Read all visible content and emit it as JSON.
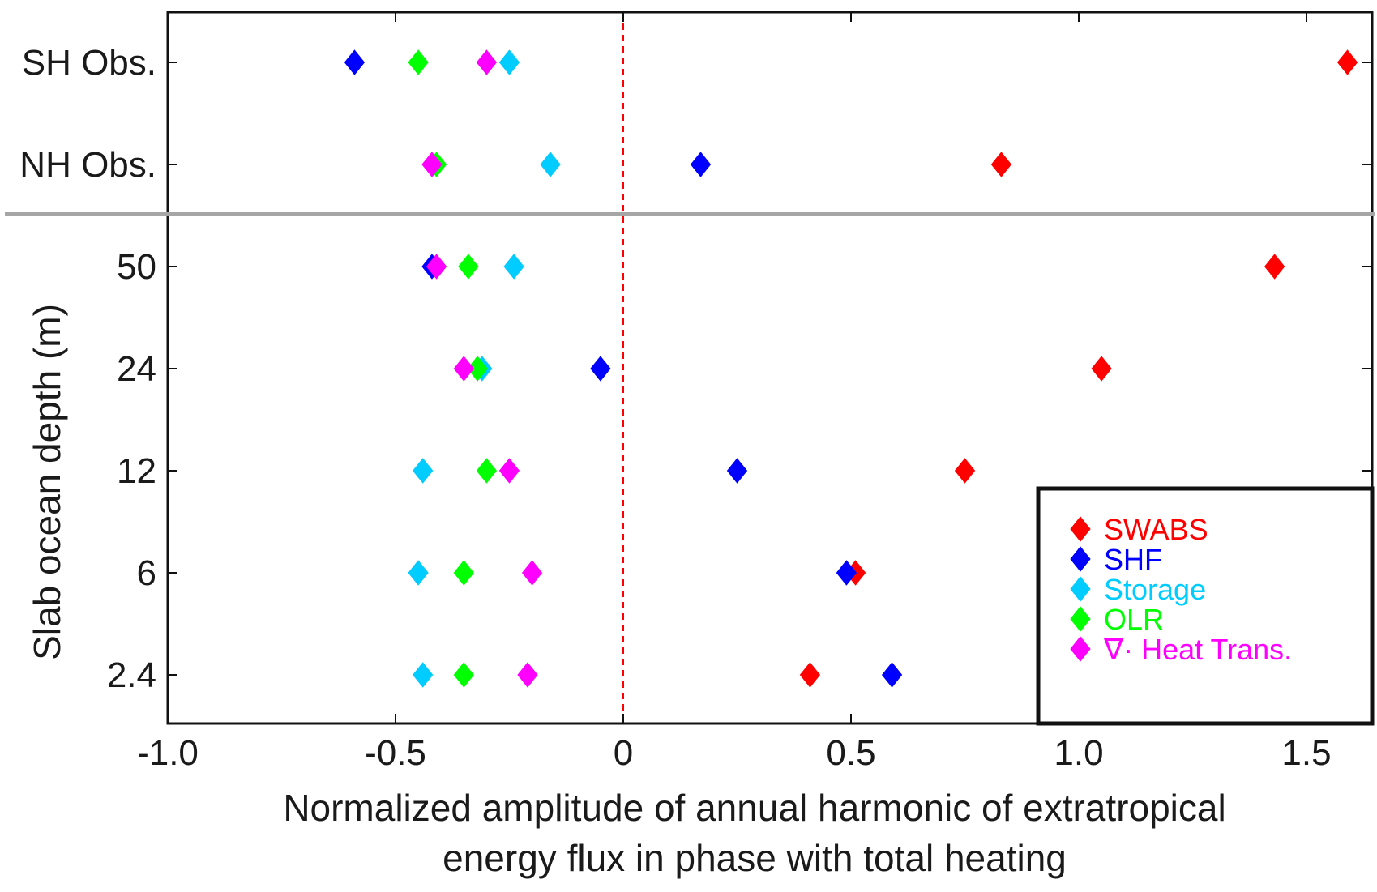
{
  "chart_data": {
    "type": "scatter",
    "title": "",
    "xlabel_lines": [
      "Normalized amplitude of annual harmonic of extratropical",
      "energy flux in phase with total heating"
    ],
    "ylabel": "Slab ocean depth (m)",
    "xlim": [
      -1.0,
      1.65
    ],
    "x_ticks": [
      -1.0,
      -0.5,
      0,
      0.5,
      1.0,
      1.5
    ],
    "x_tick_labels": [
      "-1.0",
      "-0.5",
      "0",
      "0.5",
      "1.0",
      "1.5"
    ],
    "categories": [
      "SH Obs.",
      "NH Obs.",
      "50",
      "24",
      "12",
      "6",
      "2.4"
    ],
    "separator_after_index": 1,
    "reference_line_x": 0,
    "grid": false,
    "legend_position": "bottom-right",
    "series": [
      {
        "name": "SWABS",
        "color": "#ff0000",
        "values": [
          1.59,
          0.83,
          1.43,
          1.05,
          0.75,
          0.51,
          0.41
        ]
      },
      {
        "name": "SHF",
        "color": "#0000ff",
        "values": [
          -0.59,
          0.17,
          -0.42,
          -0.05,
          0.25,
          0.49,
          0.59
        ]
      },
      {
        "name": "Storage",
        "color": "#00ccff",
        "values": [
          -0.25,
          -0.16,
          -0.24,
          -0.31,
          -0.44,
          -0.45,
          -0.44
        ]
      },
      {
        "name": "OLR",
        "color": "#00ff00",
        "values": [
          -0.45,
          -0.41,
          -0.34,
          -0.32,
          -0.3,
          -0.35,
          -0.35
        ]
      },
      {
        "name": "∇· Heat Trans.",
        "color": "#ff00ff",
        "values": [
          -0.3,
          -0.42,
          -0.41,
          -0.35,
          -0.25,
          -0.2,
          -0.21
        ]
      }
    ]
  }
}
